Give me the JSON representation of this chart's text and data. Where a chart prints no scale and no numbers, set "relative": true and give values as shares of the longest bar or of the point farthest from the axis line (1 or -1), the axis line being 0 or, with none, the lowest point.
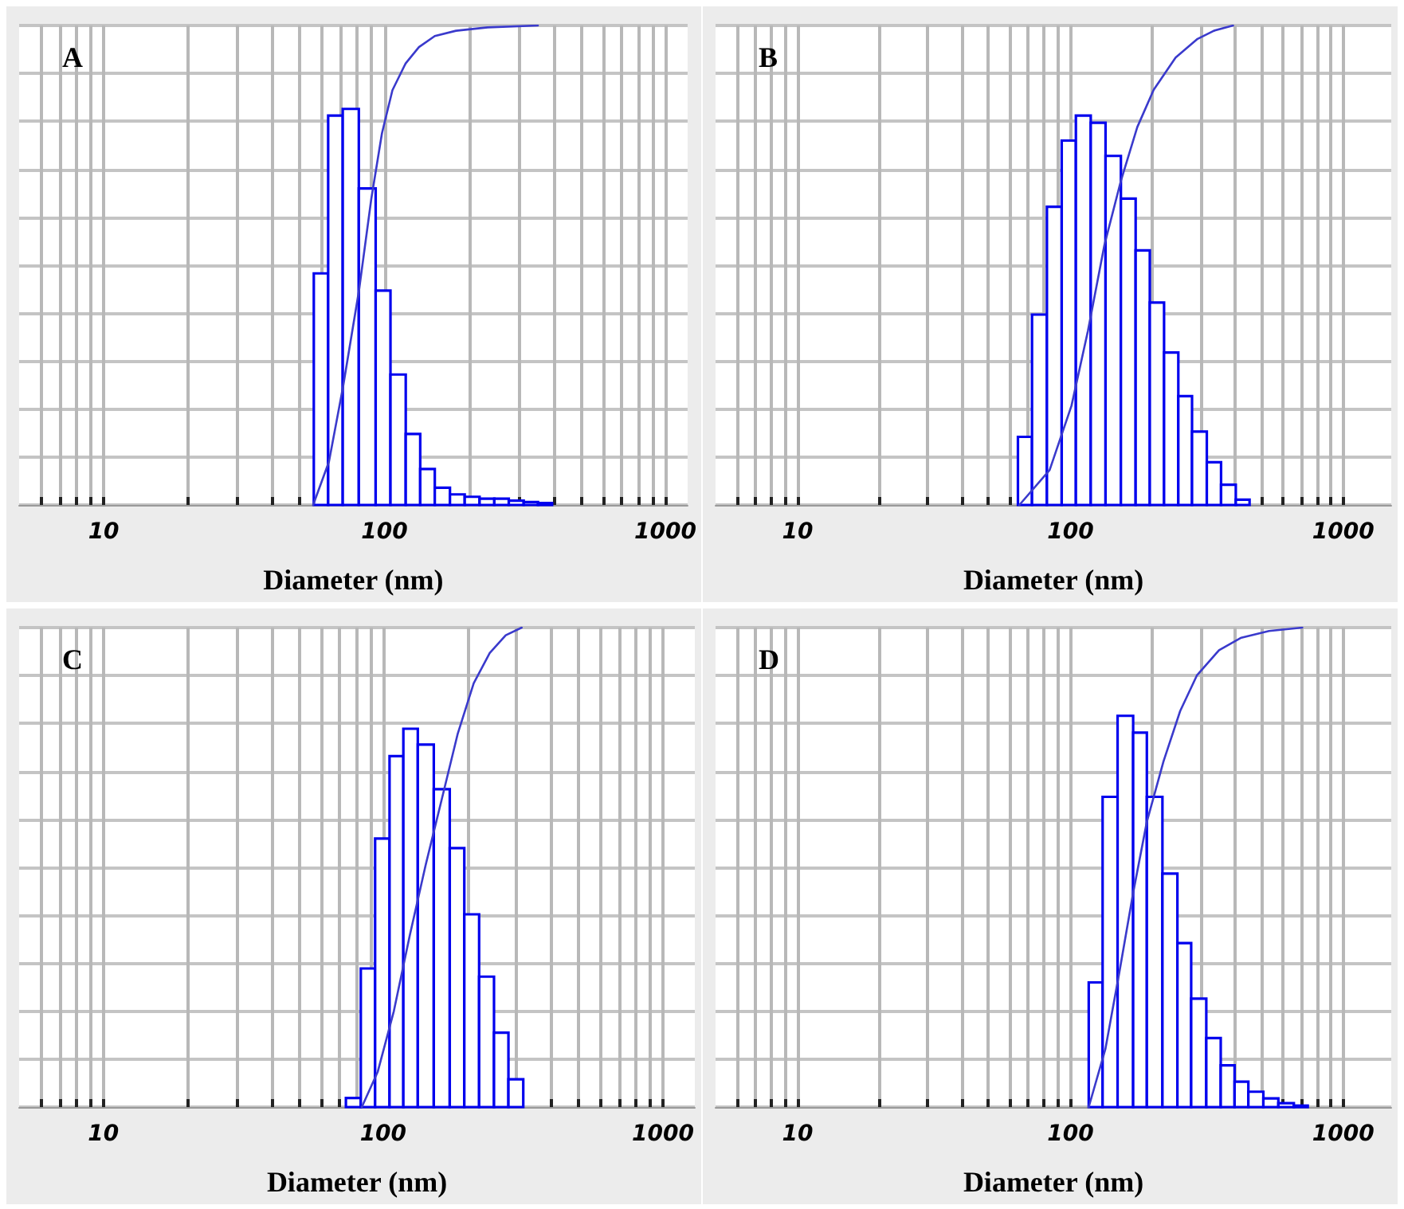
{
  "chart_data": [
    {
      "type": "histogram",
      "title": "A",
      "xlabel": "Diameter (nm)",
      "relative": true,
      "log": "x",
      "grid": true,
      "xlim": [
        5,
        1200
      ],
      "xticks": [
        {
          "value": 6,
          "label": null
        },
        {
          "value": 7,
          "label": null
        },
        {
          "value": 8,
          "label": null
        },
        {
          "value": 9,
          "label": null
        },
        10,
        {
          "value": 20,
          "label": null
        },
        {
          "value": 30,
          "label": null
        },
        {
          "value": 40,
          "label": null
        },
        {
          "value": 50,
          "label": null
        },
        {
          "value": 60,
          "label": null
        },
        {
          "value": 70,
          "label": null
        },
        {
          "value": 80,
          "label": null
        },
        {
          "value": 90,
          "label": null
        },
        100,
        {
          "value": 200,
          "label": null
        },
        {
          "value": 300,
          "label": null
        },
        {
          "value": 400,
          "label": null
        },
        {
          "value": 500,
          "label": null
        },
        {
          "value": 600,
          "label": null
        },
        {
          "value": 700,
          "label": null
        },
        {
          "value": 800,
          "label": null
        },
        {
          "value": 900,
          "label": null
        },
        1000
      ],
      "series": [
        {
          "type": "histogram",
          "color": "#0000ee",
          "bins": [
            56,
            63,
            71,
            81,
            93,
            105,
            119,
            134,
            151,
            171,
            193,
            218,
            246,
            277,
            313,
            352,
            395
          ],
          "values": [
            0.483,
            0.812,
            0.826,
            0.66,
            0.447,
            0.272,
            0.148,
            0.075,
            0.036,
            0.022,
            0.017,
            0.013,
            0.013,
            0.009,
            0.006,
            0.004
          ]
        },
        {
          "type": "line",
          "color": "#3a3acc",
          "x": [
            55.7,
            63.4,
            71.2,
            81.2,
            89.8,
            97.9,
            106.7,
            118.9,
            132.6,
            151,
            179.6,
            232.9,
            351.6
          ],
          "values": [
            0,
            0.09,
            0.247,
            0.449,
            0.64,
            0.775,
            0.865,
            0.921,
            0.955,
            0.978,
            0.989,
            0.996,
            1
          ]
        }
      ]
    },
    {
      "type": "histogram",
      "title": "B",
      "xlabel": "Diameter (nm)",
      "relative": true,
      "log": "x",
      "grid": true,
      "xlim": [
        5,
        1500
      ],
      "xticks": [
        {
          "value": 6,
          "label": null
        },
        {
          "value": 7,
          "label": null
        },
        {
          "value": 8,
          "label": null
        },
        {
          "value": 9,
          "label": null
        },
        10,
        {
          "value": 20,
          "label": null
        },
        {
          "value": 30,
          "label": null
        },
        {
          "value": 40,
          "label": null
        },
        {
          "value": 50,
          "label": null
        },
        {
          "value": 60,
          "label": null
        },
        {
          "value": 70,
          "label": null
        },
        {
          "value": 80,
          "label": null
        },
        {
          "value": 90,
          "label": null
        },
        100,
        {
          "value": 200,
          "label": null
        },
        {
          "value": 300,
          "label": null
        },
        {
          "value": 400,
          "label": null
        },
        {
          "value": 500,
          "label": null
        },
        {
          "value": 600,
          "label": null
        },
        {
          "value": 700,
          "label": null
        },
        {
          "value": 800,
          "label": null
        },
        {
          "value": 900,
          "label": null
        },
        1000
      ],
      "series": [
        {
          "type": "histogram",
          "color": "#0000ee",
          "bins": [
            64.2,
            72.3,
            82,
            92.9,
            104.7,
            118.7,
            134.5,
            153.1,
            173.4,
            195.4,
            220.4,
            248.6,
            279.1,
            316.2,
            356.6,
            403.8,
            453.6
          ],
          "values": [
            0.142,
            0.397,
            0.622,
            0.76,
            0.812,
            0.797,
            0.728,
            0.639,
            0.531,
            0.422,
            0.318,
            0.227,
            0.153,
            0.089,
            0.042,
            0.011
          ]
        },
        {
          "type": "line",
          "color": "#3a3acc",
          "x": [
            65,
            83.9,
            100.9,
            115.9,
            133.2,
            153.1,
            175.8,
            201.9,
            243,
            292.4,
            335.7,
            394.6
          ],
          "values": [
            0,
            0.073,
            0.207,
            0.363,
            0.542,
            0.676,
            0.788,
            0.866,
            0.933,
            0.972,
            0.989,
            1
          ]
        }
      ]
    },
    {
      "type": "histogram",
      "title": "C",
      "xlabel": "Diameter (nm)",
      "relative": true,
      "log": "x",
      "grid": true,
      "xlim": [
        5,
        1300
      ],
      "xticks": [
        {
          "value": 6,
          "label": null
        },
        {
          "value": 7,
          "label": null
        },
        {
          "value": 8,
          "label": null
        },
        {
          "value": 9,
          "label": null
        },
        10,
        {
          "value": 20,
          "label": null
        },
        {
          "value": 30,
          "label": null
        },
        {
          "value": 40,
          "label": null
        },
        {
          "value": 50,
          "label": null
        },
        {
          "value": 60,
          "label": null
        },
        {
          "value": 70,
          "label": null
        },
        {
          "value": 80,
          "label": null
        },
        {
          "value": 90,
          "label": null
        },
        100,
        {
          "value": 200,
          "label": null
        },
        {
          "value": 300,
          "label": null
        },
        {
          "value": 400,
          "label": null
        },
        {
          "value": 500,
          "label": null
        },
        {
          "value": 600,
          "label": null
        },
        {
          "value": 700,
          "label": null
        },
        {
          "value": 800,
          "label": null
        },
        {
          "value": 900,
          "label": null
        },
        1000
      ],
      "series": [
        {
          "type": "histogram",
          "color": "#0000ee",
          "bins": [
            73.6,
            83.2,
            93.6,
            105.4,
            118.1,
            133,
            151.7,
            173,
            195,
            220.3,
            249,
            280.4,
            316.8
          ],
          "values": [
            0.019,
            0.289,
            0.56,
            0.732,
            0.789,
            0.756,
            0.663,
            0.54,
            0.402,
            0.272,
            0.155,
            0.058
          ]
        },
        {
          "type": "line",
          "color": "#3a3acc",
          "x": [
            83.9,
            95.7,
            109.2,
            124.5,
            141.9,
            162,
            184.8,
            210.7,
            240.4,
            274.2,
            312.7
          ],
          "values": [
            0,
            0.074,
            0.2,
            0.358,
            0.505,
            0.642,
            0.779,
            0.884,
            0.947,
            0.984,
            1
          ]
        }
      ]
    },
    {
      "type": "histogram",
      "title": "D",
      "xlabel": "Diameter (nm)",
      "relative": true,
      "log": "x",
      "grid": true,
      "xlim": [
        5,
        1500
      ],
      "xticks": [
        {
          "value": 6,
          "label": null
        },
        {
          "value": 7,
          "label": null
        },
        {
          "value": 8,
          "label": null
        },
        {
          "value": 9,
          "label": null
        },
        10,
        {
          "value": 20,
          "label": null
        },
        {
          "value": 30,
          "label": null
        },
        {
          "value": 40,
          "label": null
        },
        {
          "value": 50,
          "label": null
        },
        {
          "value": 60,
          "label": null
        },
        {
          "value": 70,
          "label": null
        },
        {
          "value": 80,
          "label": null
        },
        {
          "value": 90,
          "label": null
        },
        100,
        {
          "value": 200,
          "label": null
        },
        {
          "value": 300,
          "label": null
        },
        {
          "value": 400,
          "label": null
        },
        {
          "value": 500,
          "label": null
        },
        {
          "value": 600,
          "label": null
        },
        {
          "value": 700,
          "label": null
        },
        {
          "value": 800,
          "label": null
        },
        {
          "value": 900,
          "label": null
        },
        1000
      ],
      "series": [
        {
          "type": "histogram",
          "color": "#0000ee",
          "bins": [
            116.7,
            131.2,
            148.9,
            169.8,
            190.6,
            217.4,
            246.7,
            277.1,
            314.8,
            355.6,
            399.7,
            449,
            509.6,
            578.4,
            659.2,
            741.3
          ],
          "values": [
            0.26,
            0.647,
            0.816,
            0.781,
            0.647,
            0.487,
            0.342,
            0.226,
            0.144,
            0.087,
            0.053,
            0.032,
            0.018,
            0.008,
            0.003
          ]
        },
        {
          "type": "line",
          "color": "#3a3acc",
          "x": [
            116.7,
            134.3,
            150.9,
            169.8,
            190.6,
            219.4,
            252.5,
            290.6,
            350.6,
            422.9,
            534.6,
            707.9
          ],
          "values": [
            0,
            0.121,
            0.279,
            0.447,
            0.595,
            0.721,
            0.826,
            0.9,
            0.953,
            0.979,
            0.993,
            1
          ]
        }
      ]
    }
  ]
}
